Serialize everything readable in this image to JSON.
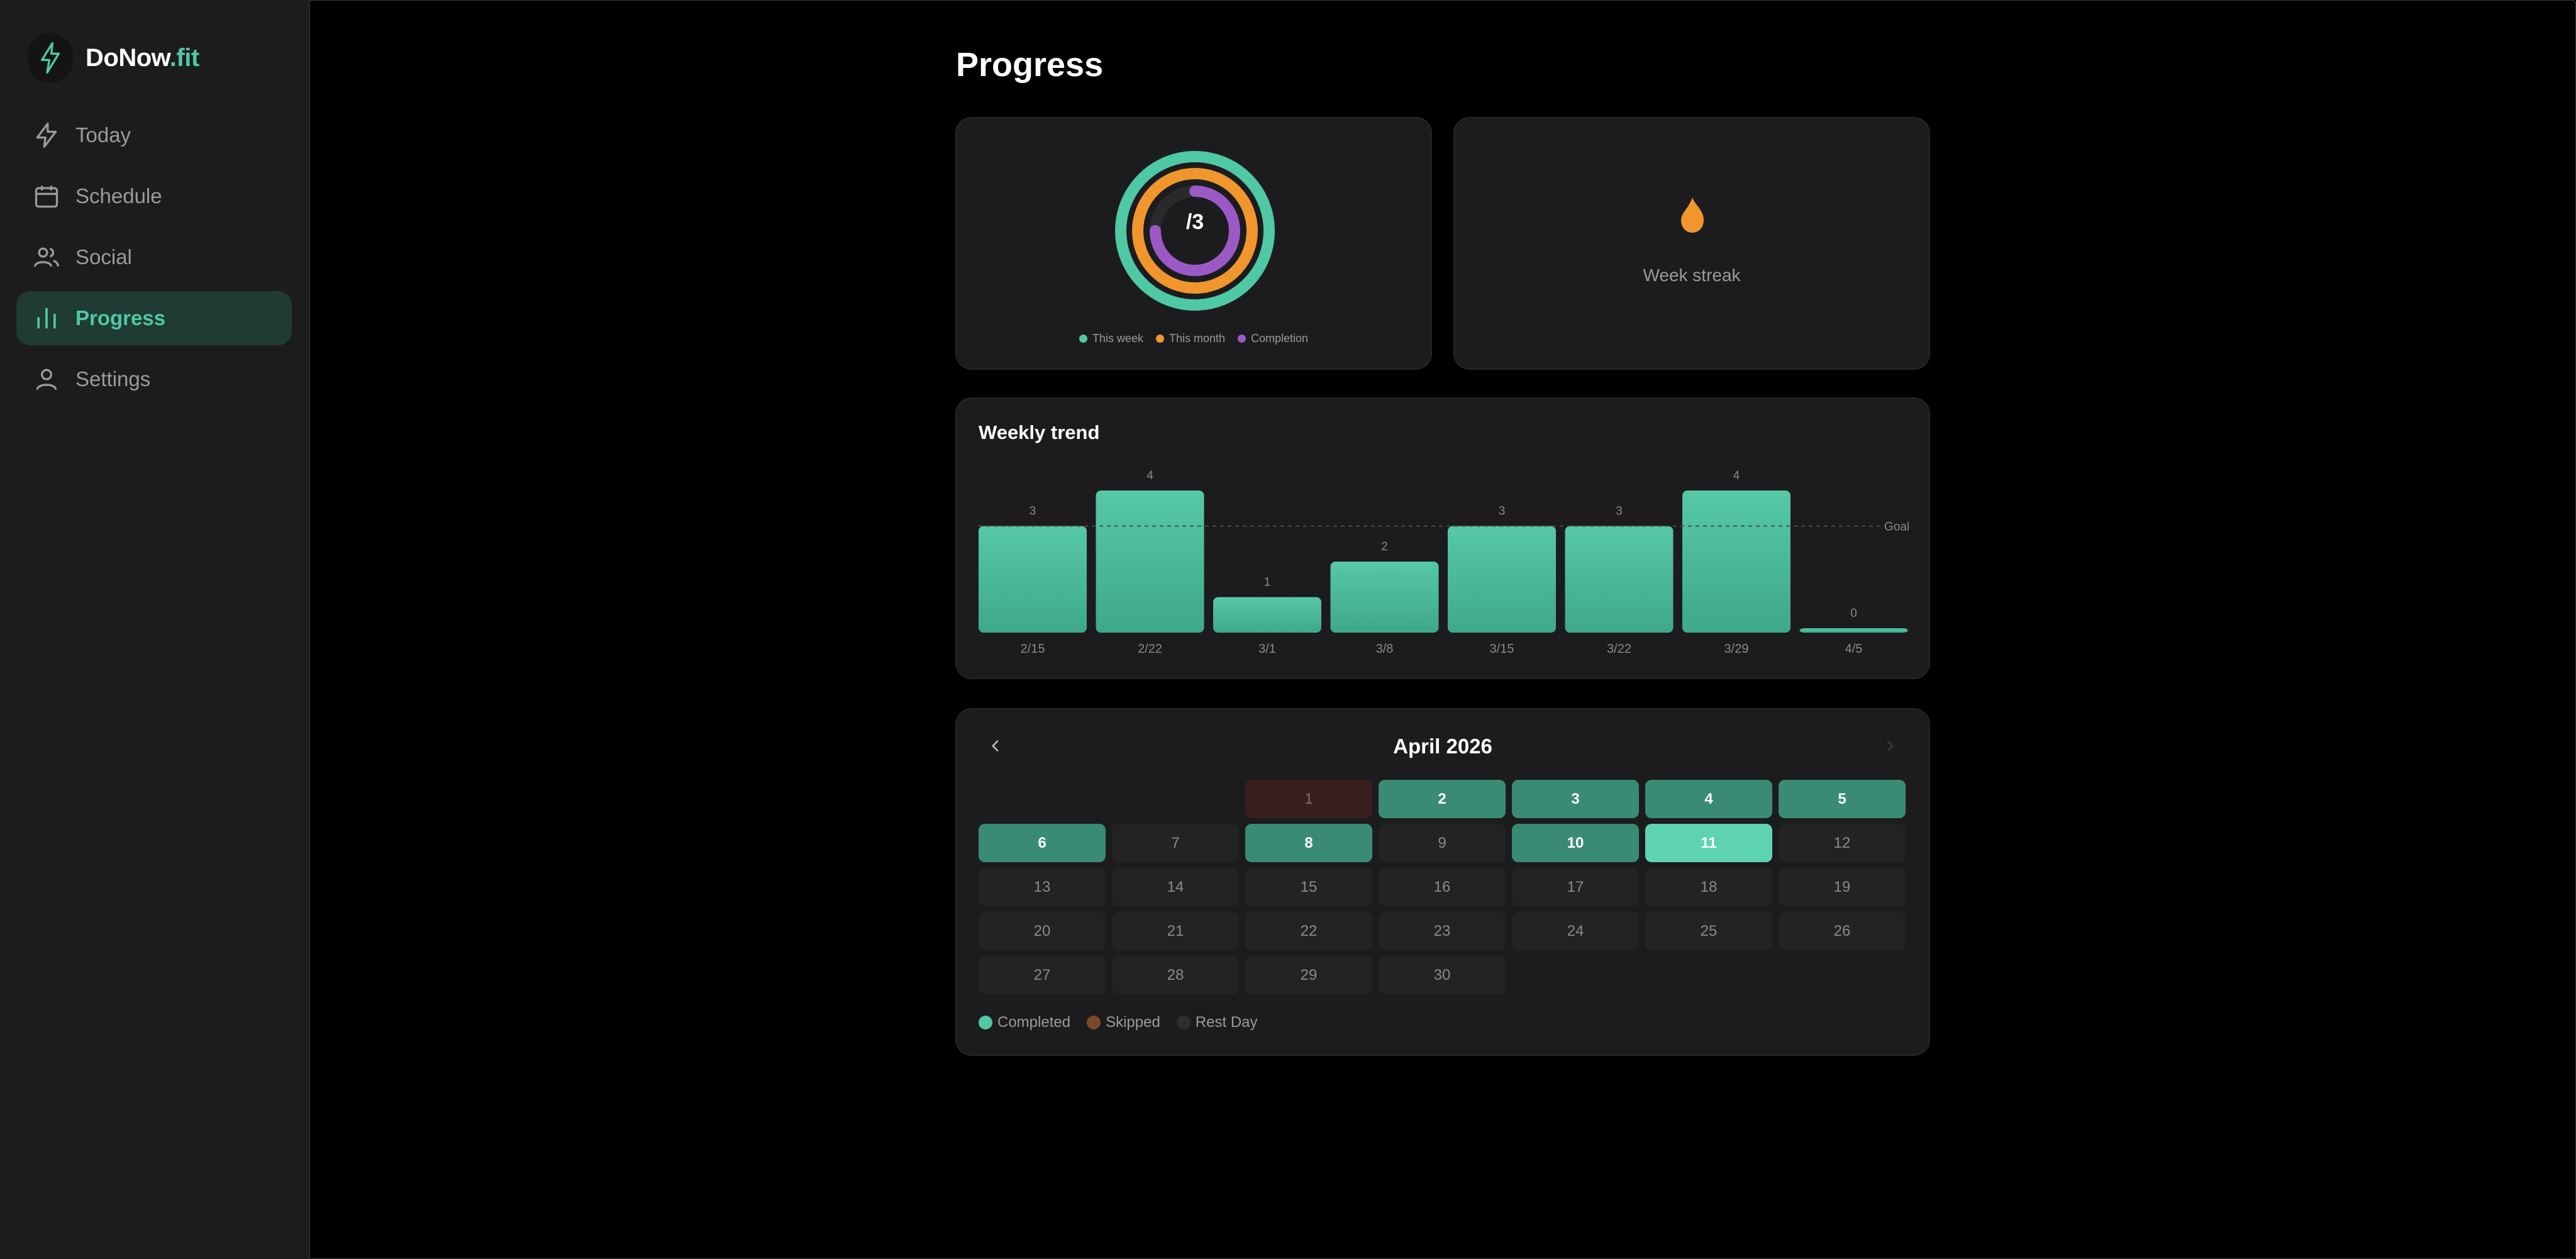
{
  "app": {
    "brand_main": "DoNow",
    "brand_accent": ".fit",
    "accent_color": "#4fc8a4"
  },
  "sidebar": {
    "items": [
      {
        "label": "Today",
        "icon": "bolt-icon",
        "active": false
      },
      {
        "label": "Schedule",
        "icon": "calendar-icon",
        "active": false
      },
      {
        "label": "Social",
        "icon": "users-icon",
        "active": false
      },
      {
        "label": "Progress",
        "icon": "bar-chart-icon",
        "active": true
      },
      {
        "label": "Settings",
        "icon": "user-icon",
        "active": false
      }
    ]
  },
  "main": {
    "title": "Progress",
    "rings": {
      "center_text": "/3",
      "legend": [
        {
          "label": "This week",
          "color": "#4fc8a4"
        },
        {
          "label": "This month",
          "color": "#f0962c"
        },
        {
          "label": "Completion",
          "color": "#9b59c6"
        }
      ],
      "completion_fraction": 0.75
    },
    "streak": {
      "label": "Week streak",
      "icon": "flame-icon"
    },
    "trend": {
      "title": "Weekly trend",
      "goal_label": "Goal"
    },
    "calendar": {
      "month_label": "April 2026",
      "leading_blanks": 2,
      "days": [
        {
          "day": "1",
          "status": "skipped"
        },
        {
          "day": "2",
          "status": "completed"
        },
        {
          "day": "3",
          "status": "completed"
        },
        {
          "day": "4",
          "status": "completed"
        },
        {
          "day": "5",
          "status": "completed"
        },
        {
          "day": "6",
          "status": "completed"
        },
        {
          "day": "7",
          "status": "rest"
        },
        {
          "day": "8",
          "status": "completed"
        },
        {
          "day": "9",
          "status": "rest"
        },
        {
          "day": "10",
          "status": "completed"
        },
        {
          "day": "11",
          "status": "today"
        },
        {
          "day": "12",
          "status": "rest"
        },
        {
          "day": "13",
          "status": "rest"
        },
        {
          "day": "14",
          "status": "rest"
        },
        {
          "day": "15",
          "status": "rest"
        },
        {
          "day": "16",
          "status": "rest"
        },
        {
          "day": "17",
          "status": "rest"
        },
        {
          "day": "18",
          "status": "rest"
        },
        {
          "day": "19",
          "status": "rest"
        },
        {
          "day": "20",
          "status": "rest"
        },
        {
          "day": "21",
          "status": "rest"
        },
        {
          "day": "22",
          "status": "rest"
        },
        {
          "day": "23",
          "status": "rest"
        },
        {
          "day": "24",
          "status": "rest"
        },
        {
          "day": "25",
          "status": "rest"
        },
        {
          "day": "26",
          "status": "rest"
        },
        {
          "day": "27",
          "status": "rest"
        },
        {
          "day": "28",
          "status": "rest"
        },
        {
          "day": "29",
          "status": "rest"
        },
        {
          "day": "30",
          "status": "rest"
        }
      ],
      "legend": [
        {
          "label": "Completed",
          "color": "#4fc8a4"
        },
        {
          "label": "Skipped",
          "color": "#7a4a2a"
        },
        {
          "label": "Rest Day",
          "color": "#2e2e30"
        }
      ]
    }
  },
  "chart_data": {
    "type": "bar",
    "categories": [
      "2/15",
      "2/22",
      "3/1",
      "3/8",
      "3/15",
      "3/22",
      "3/29",
      "4/5"
    ],
    "values": [
      3,
      4,
      1,
      2,
      3,
      3,
      4,
      0
    ],
    "goal": 3,
    "ylim": [
      0,
      4
    ],
    "bar_color": "#4fc8a4"
  }
}
